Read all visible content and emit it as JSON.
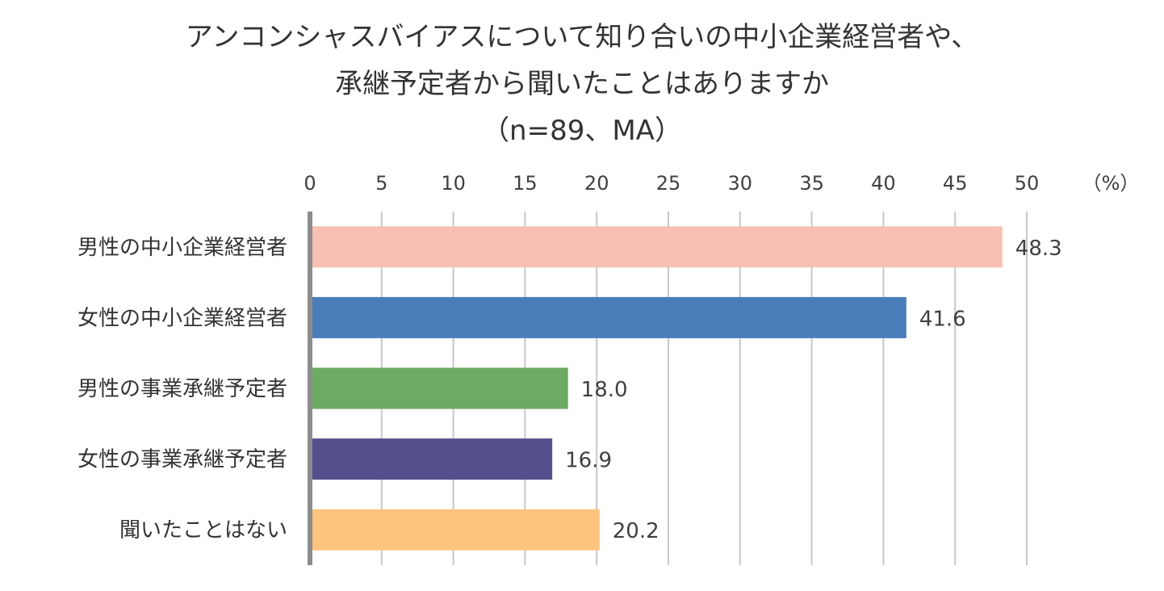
{
  "chart_data": {
    "type": "bar",
    "orientation": "horizontal",
    "title": "アンコンシャスバイアスについて知り合いの中小企業経営者や、承継予定者から聞いたことはありますか（n=89、MA）",
    "title_lines": [
      "アンコンシャスバイアスについて知り合いの中小企業経営者や、",
      "承継予定者から聞いたことはありますか",
      "（n=89、MA）"
    ],
    "unit_label": "（%）",
    "xlim": [
      0,
      50
    ],
    "ticks": [
      0,
      5,
      10,
      15,
      20,
      25,
      30,
      35,
      40,
      45,
      50
    ],
    "grid": true,
    "categories": [
      "男性の中小企業経営者",
      "女性の中小企業経営者",
      "男性の事業承継予定者",
      "女性の事業承継予定者",
      "聞いたことはない"
    ],
    "values": [
      48.3,
      41.6,
      18.0,
      16.9,
      20.2
    ],
    "value_labels": [
      "48.3",
      "41.6",
      "18.0",
      "16.9",
      "20.2"
    ],
    "colors": [
      "#F7C0B2",
      "#4A7EBB",
      "#6DAA63",
      "#554E8C",
      "#FCC47E"
    ]
  }
}
